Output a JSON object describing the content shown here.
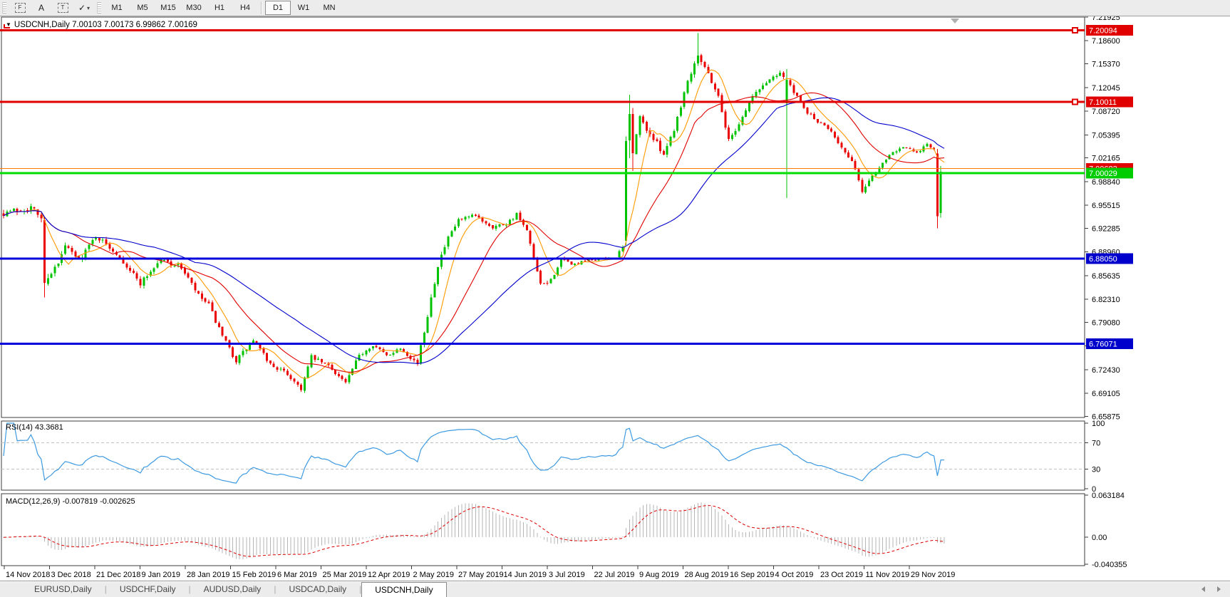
{
  "toolbar": {
    "icon_buttons": [
      {
        "name": "cursor-tool",
        "glyph": "F",
        "style": "dashed-box"
      },
      {
        "name": "arrow-label-tool",
        "glyph": "A",
        "style": "plain"
      },
      {
        "name": "text-tool",
        "glyph": "T",
        "style": "dashed-box"
      },
      {
        "name": "drawing-tools",
        "glyph": "✓",
        "style": "plain",
        "has_dropdown": true
      }
    ],
    "timeframes": [
      "M1",
      "M5",
      "M15",
      "M30",
      "H1",
      "H4",
      "D1",
      "W1",
      "MN"
    ],
    "active_timeframe": "D1"
  },
  "chart": {
    "dropdown_glyph": "▼",
    "symbol_tf": "USDCNH,Daily",
    "ohlc_text": "7.00103 7.00173 6.99862 7.00169"
  },
  "indicators": {
    "rsi_label": "RSI(14) 43.3681",
    "macd_label": "MACD(12,26,9) -0.007819 -0.002625"
  },
  "tabs": {
    "items": [
      "EURUSD,Daily",
      "USDCHF,Daily",
      "AUDUSD,Daily",
      "USDCAD,Daily",
      "USDCNH,Daily"
    ],
    "active": "USDCNH,Daily"
  },
  "chart_data": {
    "type": "candlestick",
    "symbol": "USDCNH",
    "timeframe": "Daily",
    "last_ohlc": {
      "open": 7.00103,
      "high": 7.00173,
      "low": 6.99862,
      "close": 7.00169
    },
    "bull_color": "#00c300",
    "bear_color": "#ea0000",
    "y_ticks": [
      7.21925,
      7.186,
      7.1537,
      7.12045,
      7.0872,
      7.05395,
      7.02165,
      6.9884,
      6.95515,
      6.92285,
      6.8896,
      6.85635,
      6.8231,
      6.7908,
      6.75755,
      6.7243,
      6.69105,
      6.65875
    ],
    "x_labels": [
      "14 Nov 2018",
      "3 Dec 2018",
      "21 Dec 2018",
      "9 Jan 2019",
      "28 Jan 2019",
      "15 Feb 2019",
      "6 Mar 2019",
      "25 Mar 2019",
      "12 Apr 2019",
      "2 May 2019",
      "27 May 2019",
      "14 Jun 2019",
      "3 Jul 2019",
      "22 Jul 2019",
      "9 Aug 2019",
      "28 Aug 2019",
      "16 Sep 2019",
      "4 Oct 2019",
      "23 Oct 2019",
      "11 Nov 2019",
      "29 Nov 2019"
    ],
    "horizontal_lines": [
      {
        "price": 7.20094,
        "color": "#e00000",
        "width": 3,
        "tag": "7.20094",
        "tag_bg": "#e00000",
        "marker": true
      },
      {
        "price": 7.10011,
        "color": "#e00000",
        "width": 3,
        "tag": "7.10011",
        "tag_bg": "#e00000",
        "marker": true
      },
      {
        "price": 7.00683,
        "color": "#ff7a00",
        "width": 1,
        "tag": "7.00683",
        "tag_bg": "#e00000",
        "marker": false
      },
      {
        "price": 7.00029,
        "color": "#00dd00",
        "width": 3,
        "tag": "7.00029",
        "tag_bg": "#00cc00",
        "marker": false
      },
      {
        "price": 6.8805,
        "color": "#0000dd",
        "width": 3,
        "tag": "6.88050",
        "tag_bg": "#0000cc",
        "marker": false
      },
      {
        "price": 6.76071,
        "color": "#0000dd",
        "width": 3,
        "tag": "6.76071",
        "tag_bg": "#0000cc",
        "marker": false
      }
    ],
    "moving_averages": [
      {
        "name": "fast",
        "period": 8,
        "color": "#ff9900"
      },
      {
        "name": "medium",
        "period": 21,
        "color": "#e00000"
      },
      {
        "name": "slow",
        "period": 45,
        "color": "#0000cc"
      }
    ],
    "price_anchors": [
      [
        0,
        6.945,
        0.012
      ],
      [
        8,
        6.952,
        0.012
      ],
      [
        11,
        6.938,
        0.013
      ],
      [
        13,
        6.857,
        0.015
      ],
      [
        16,
        6.872,
        0.011
      ],
      [
        18,
        6.898,
        0.009
      ],
      [
        22,
        6.878,
        0.009
      ],
      [
        27,
        6.912,
        0.009
      ],
      [
        33,
        6.888,
        0.008
      ],
      [
        40,
        6.846,
        0.01
      ],
      [
        46,
        6.879,
        0.008
      ],
      [
        52,
        6.868,
        0.008
      ],
      [
        57,
        6.828,
        0.009
      ],
      [
        60,
        6.815,
        0.008
      ],
      [
        64,
        6.77,
        0.009
      ],
      [
        68,
        6.737,
        0.009
      ],
      [
        73,
        6.765,
        0.008
      ],
      [
        78,
        6.732,
        0.008
      ],
      [
        83,
        6.718,
        0.008
      ],
      [
        87,
        6.698,
        0.008
      ],
      [
        90,
        6.742,
        0.007
      ],
      [
        95,
        6.73,
        0.007
      ],
      [
        100,
        6.706,
        0.007
      ],
      [
        104,
        6.744,
        0.007
      ],
      [
        108,
        6.76,
        0.007
      ],
      [
        112,
        6.744,
        0.006
      ],
      [
        116,
        6.755,
        0.006
      ],
      [
        121,
        6.733,
        0.007
      ],
      [
        123,
        6.778,
        0.011
      ],
      [
        125,
        6.826,
        0.011
      ],
      [
        127,
        6.872,
        0.011
      ],
      [
        130,
        6.908,
        0.009
      ],
      [
        133,
        6.934,
        0.008
      ],
      [
        138,
        6.94,
        0.007
      ],
      [
        143,
        6.925,
        0.007
      ],
      [
        147,
        6.93,
        0.007
      ],
      [
        150,
        6.942,
        0.007
      ],
      [
        153,
        6.918,
        0.008
      ],
      [
        157,
        6.842,
        0.009
      ],
      [
        160,
        6.85,
        0.007
      ],
      [
        163,
        6.878,
        0.007
      ],
      [
        167,
        6.872,
        0.005
      ],
      [
        171,
        6.878,
        0.004
      ],
      [
        175,
        6.879,
        0.004
      ],
      [
        179,
        6.882,
        0.005
      ],
      [
        181,
        6.895,
        0.007
      ],
      [
        184,
        7.03,
        0.012
      ],
      [
        186,
        7.078,
        0.012
      ],
      [
        189,
        7.055,
        0.01
      ],
      [
        193,
        7.028,
        0.009
      ],
      [
        196,
        7.062,
        0.009
      ],
      [
        200,
        7.13,
        0.01
      ],
      [
        203,
        7.168,
        0.01
      ],
      [
        206,
        7.14,
        0.009
      ],
      [
        209,
        7.108,
        0.009
      ],
      [
        212,
        7.046,
        0.009
      ],
      [
        215,
        7.07,
        0.008
      ],
      [
        219,
        7.108,
        0.008
      ],
      [
        223,
        7.128,
        0.008
      ],
      [
        227,
        7.143,
        0.008
      ],
      [
        230,
        7.122,
        0.007
      ],
      [
        234,
        7.09,
        0.007
      ],
      [
        238,
        7.072,
        0.006
      ],
      [
        242,
        7.06,
        0.006
      ],
      [
        246,
        7.028,
        0.007
      ],
      [
        249,
        7.008,
        0.007
      ],
      [
        251,
        6.972,
        0.009
      ],
      [
        253,
        6.992,
        0.007
      ],
      [
        256,
        7.008,
        0.006
      ],
      [
        259,
        7.028,
        0.006
      ],
      [
        263,
        7.038,
        0.006
      ],
      [
        267,
        7.028,
        0.005
      ],
      [
        270,
        7.042,
        0.006
      ],
      [
        272,
        7.032,
        0.005
      ],
      [
        273,
        6.94,
        0.009
      ],
      [
        274,
        7.002,
        0.007
      ],
      [
        275,
        7.0017,
        0.002
      ]
    ],
    "candle_overrides": {
      "12": {
        "o": 6.934,
        "h": 6.938,
        "l": 6.826,
        "c": 6.846
      },
      "182": {
        "o": 6.905,
        "h": 7.052,
        "l": 6.899,
        "c": 7.045
      },
      "183": {
        "o": 7.046,
        "h": 7.11,
        "l": 7.021,
        "c": 7.083
      },
      "184": {
        "o": 7.083,
        "h": 7.092,
        "l": 7.003,
        "c": 7.028
      },
      "203": {
        "h": 7.1965
      },
      "229": {
        "o": 7.098,
        "h": 7.146,
        "l": 6.965,
        "c": 7.131
      },
      "273": {
        "o": 7.028,
        "h": 7.034,
        "l": 6.9225,
        "c": 6.94
      },
      "274": {
        "o": 6.944,
        "h": 7.01,
        "l": 6.938,
        "c": 7.002
      },
      "275": {
        "o": 7.00103,
        "h": 7.00173,
        "l": 6.99862,
        "c": 7.00169
      }
    },
    "rsi": {
      "period": 14,
      "value": 43.3681,
      "levels": [
        70,
        30
      ],
      "scale": [
        0,
        100
      ],
      "axis_ticks": [
        "100",
        "70",
        "30",
        "0"
      ],
      "color": "#3d9ae1"
    },
    "macd": {
      "params": "12,26,9",
      "value": -0.007819,
      "signal": -0.002625,
      "axis_ticks": [
        "0.063184",
        "0.00",
        "-0.040355"
      ],
      "range_max": 0.063184,
      "range_min": -0.040355,
      "histogram_color": "#b5b5b5",
      "signal_color": "#dd0000"
    }
  }
}
